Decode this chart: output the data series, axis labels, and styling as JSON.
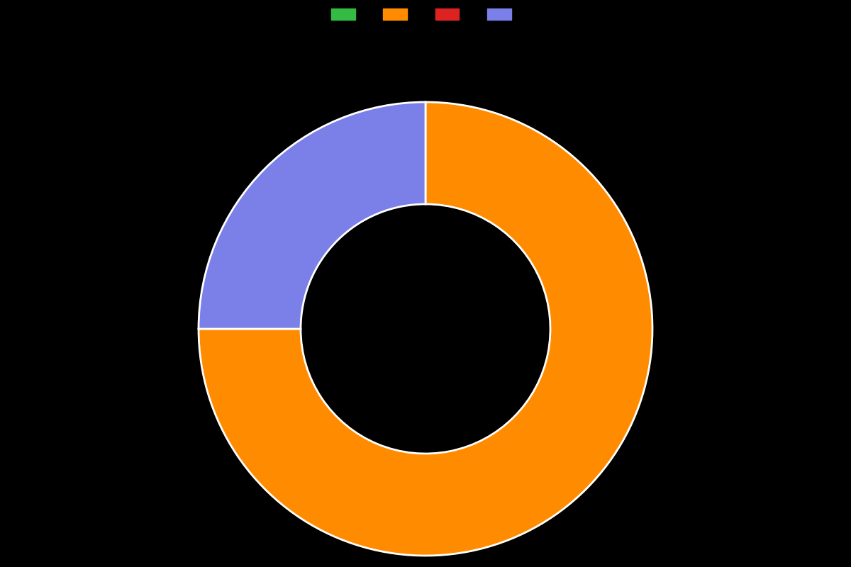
{
  "slices": [
    75.0,
    25.0
  ],
  "colors": [
    "#ff8c00",
    "#7b7fe8"
  ],
  "legend_colors": [
    "#33bb44",
    "#ff8c00",
    "#dd2222",
    "#7b7fe8"
  ],
  "legend_labels": [
    "",
    "",
    "",
    ""
  ],
  "background_color": "#000000",
  "wedge_edge_color": "#ffffff",
  "wedge_edge_width": 2.0,
  "donut_width": 0.45,
  "startangle": 90,
  "figsize": [
    12,
    8
  ]
}
